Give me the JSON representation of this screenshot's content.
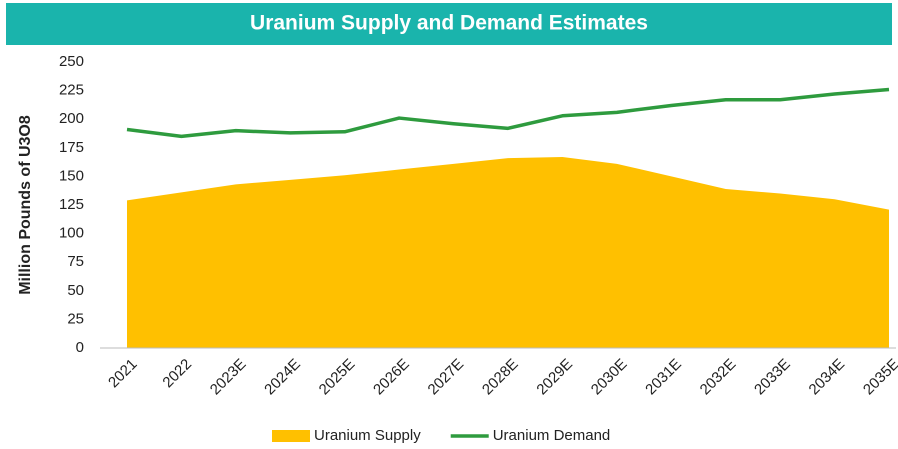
{
  "chart_data": {
    "type": "line",
    "title": "Uranium Supply and Demand Estimates",
    "y_label": "Million Pounds of U3O8",
    "categories": [
      "2021",
      "2022",
      "2023E",
      "2024E",
      "2025E",
      "2026E",
      "2027E",
      "2028E",
      "2029E",
      "2030E",
      "2031E",
      "2032E",
      "2033E",
      "2034E",
      "2035E"
    ],
    "series": [
      {
        "name": "Uranium Supply",
        "type": "area",
        "color": "#ffc000",
        "values": [
          129,
          136,
          143,
          147,
          151,
          156,
          161,
          166,
          167,
          161,
          150,
          139,
          135,
          130,
          121
        ]
      },
      {
        "name": "Uranium Demand",
        "type": "line",
        "color": "#2e9b3e",
        "values": [
          191,
          185,
          190,
          188,
          189,
          201,
          196,
          192,
          203,
          206,
          212,
          217,
          217,
          222,
          226
        ]
      }
    ],
    "ylim": [
      0,
      250
    ],
    "yticks": [
      0,
      25,
      50,
      75,
      100,
      125,
      150,
      175,
      200,
      225,
      250
    ],
    "grid": false,
    "legend": "bottom",
    "title_bar_color": "#1ab4ac"
  }
}
